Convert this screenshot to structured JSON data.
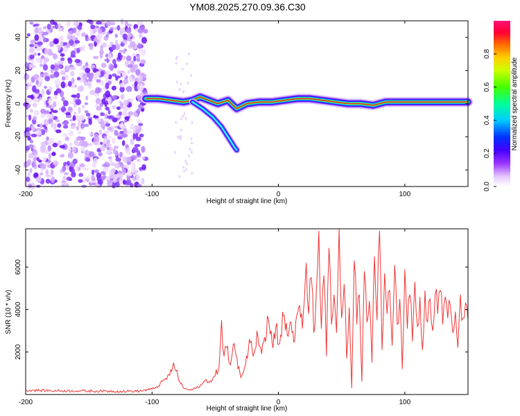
{
  "title": "YM08.2025.270.09.36.C30",
  "chart_data": [
    {
      "type": "heatmap",
      "xlabel": "Height of straight line (km)",
      "ylabel": "Frequency (Hz)",
      "xlim": [
        -200,
        150
      ],
      "ylim": [
        -50,
        50
      ],
      "xticks": [
        -200,
        -100,
        0,
        100
      ],
      "yticks": [
        -40,
        -20,
        0,
        20,
        40
      ],
      "colorbar": {
        "label": "Normalized spectral amplitude",
        "ticks": [
          "0.0",
          "0.2",
          "0.4",
          "0.6",
          "0.8"
        ],
        "range": [
          0,
          1
        ]
      },
      "noise_region": [
        -200,
        -105
      ],
      "ridge": [
        [
          -105,
          3
        ],
        [
          -95,
          3
        ],
        [
          -85,
          2
        ],
        [
          -75,
          1
        ],
        [
          -68,
          2
        ],
        [
          -62,
          4
        ],
        [
          -55,
          2
        ],
        [
          -48,
          0
        ],
        [
          -40,
          2
        ],
        [
          -33,
          -3
        ],
        [
          -25,
          0
        ],
        [
          -15,
          1
        ],
        [
          -5,
          1
        ],
        [
          5,
          2
        ],
        [
          15,
          3
        ],
        [
          25,
          3
        ],
        [
          35,
          2
        ],
        [
          45,
          1
        ],
        [
          55,
          0
        ],
        [
          65,
          0
        ],
        [
          75,
          -1
        ],
        [
          85,
          1
        ],
        [
          95,
          1
        ],
        [
          105,
          1
        ],
        [
          115,
          1
        ],
        [
          130,
          1
        ],
        [
          150,
          1
        ]
      ],
      "branch": [
        [
          -68,
          1
        ],
        [
          -60,
          -3
        ],
        [
          -52,
          -8
        ],
        [
          -45,
          -14
        ],
        [
          -40,
          -20
        ],
        [
          -35,
          -26
        ],
        [
          -33,
          -28
        ]
      ]
    },
    {
      "type": "line",
      "xlabel": "Height of straight line (km)",
      "ylabel": "SNR (10 * v/v)",
      "xlim": [
        -200,
        150
      ],
      "ylim": [
        0,
        7800
      ],
      "xticks": [
        -200,
        -100,
        0,
        100
      ],
      "yticks": [
        2000,
        4000,
        6000
      ],
      "color": "#ee3333",
      "series": [
        {
          "name": "SNR",
          "x": [
            -200,
            -180,
            -160,
            -140,
            -120,
            -110,
            -100,
            -95,
            -90,
            -86,
            -83,
            -81,
            -78,
            -75,
            -70,
            -65,
            -60,
            -57,
            -53,
            -50,
            -47,
            -45,
            -43,
            -41,
            -38,
            -35,
            -32,
            -29,
            -26,
            -23,
            -20,
            -17,
            -14,
            -11,
            -8,
            -5,
            -2,
            1,
            4,
            7,
            10,
            13,
            16,
            19,
            22,
            24,
            26,
            28,
            30,
            32,
            34,
            36,
            38,
            40,
            42,
            44,
            46,
            48,
            50,
            52,
            54,
            56,
            58,
            60,
            62,
            64,
            66,
            68,
            70,
            72,
            74,
            76,
            78,
            80,
            82,
            84,
            86,
            88,
            90,
            92,
            94,
            96,
            98,
            100,
            102,
            104,
            106,
            108,
            110,
            112,
            114,
            116,
            118,
            120,
            122,
            124,
            126,
            128,
            130,
            132,
            134,
            136,
            138,
            140,
            142,
            144,
            146,
            148,
            150
          ],
          "values": [
            200,
            180,
            170,
            160,
            150,
            160,
            250,
            400,
            700,
            900,
            1500,
            1100,
            600,
            300,
            200,
            300,
            500,
            700,
            600,
            900,
            1300,
            3500,
            1800,
            2200,
            1400,
            2400,
            1200,
            900,
            1400,
            2600,
            1800,
            3000,
            2200,
            2700,
            3600,
            2400,
            3200,
            2400,
            3700,
            2800,
            3400,
            2600,
            4100,
            3100,
            6200,
            3800,
            5500,
            2900,
            4900,
            7700,
            3100,
            5600,
            1800,
            6900,
            3300,
            4700,
            2900,
            7800,
            3600,
            5200,
            1700,
            4100,
            300,
            6300,
            3300,
            4700,
            600,
            5800,
            3400,
            4400,
            1500,
            6500,
            3500,
            7700,
            2100,
            5700,
            3800,
            4900,
            2300,
            6100,
            3300,
            4500,
            1200,
            5900,
            3100,
            4700,
            2500,
            5300,
            3200,
            4600,
            2100,
            4900,
            3400,
            4500,
            3000,
            4700,
            3800,
            4900,
            3300,
            4600,
            3600,
            4200,
            2900,
            3900,
            2200,
            4700,
            3600,
            4300,
            3500
          ]
        }
      ]
    }
  ]
}
